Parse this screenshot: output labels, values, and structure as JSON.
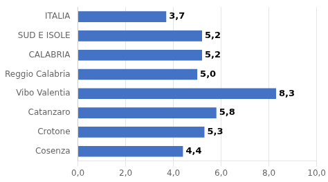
{
  "chart_data": {
    "type": "bar",
    "orientation": "horizontal",
    "categories": [
      "ITALIA",
      "SUD E ISOLE",
      "CALABRIA",
      "Reggio Calabria",
      "Vibo Valentia",
      "Catanzaro",
      "Crotone",
      "Cosenza"
    ],
    "values": [
      3.7,
      5.2,
      5.2,
      5.0,
      8.3,
      5.8,
      5.3,
      4.4
    ],
    "value_labels": [
      "3,7",
      "5,2",
      "5,2",
      "5,0",
      "8,3",
      "5,8",
      "5,3",
      "4,4"
    ],
    "data_labels": true,
    "color": "#4472c4",
    "xlim": [
      0,
      10
    ],
    "xticks": [
      {
        "value": 0,
        "label": "0,0"
      },
      {
        "value": 2,
        "label": "2,0"
      },
      {
        "value": 4,
        "label": "4,0"
      },
      {
        "value": 6,
        "label": "6,0"
      },
      {
        "value": 8,
        "label": "8,0"
      },
      {
        "value": 10,
        "label": "10,0"
      }
    ],
    "grid": true
  }
}
